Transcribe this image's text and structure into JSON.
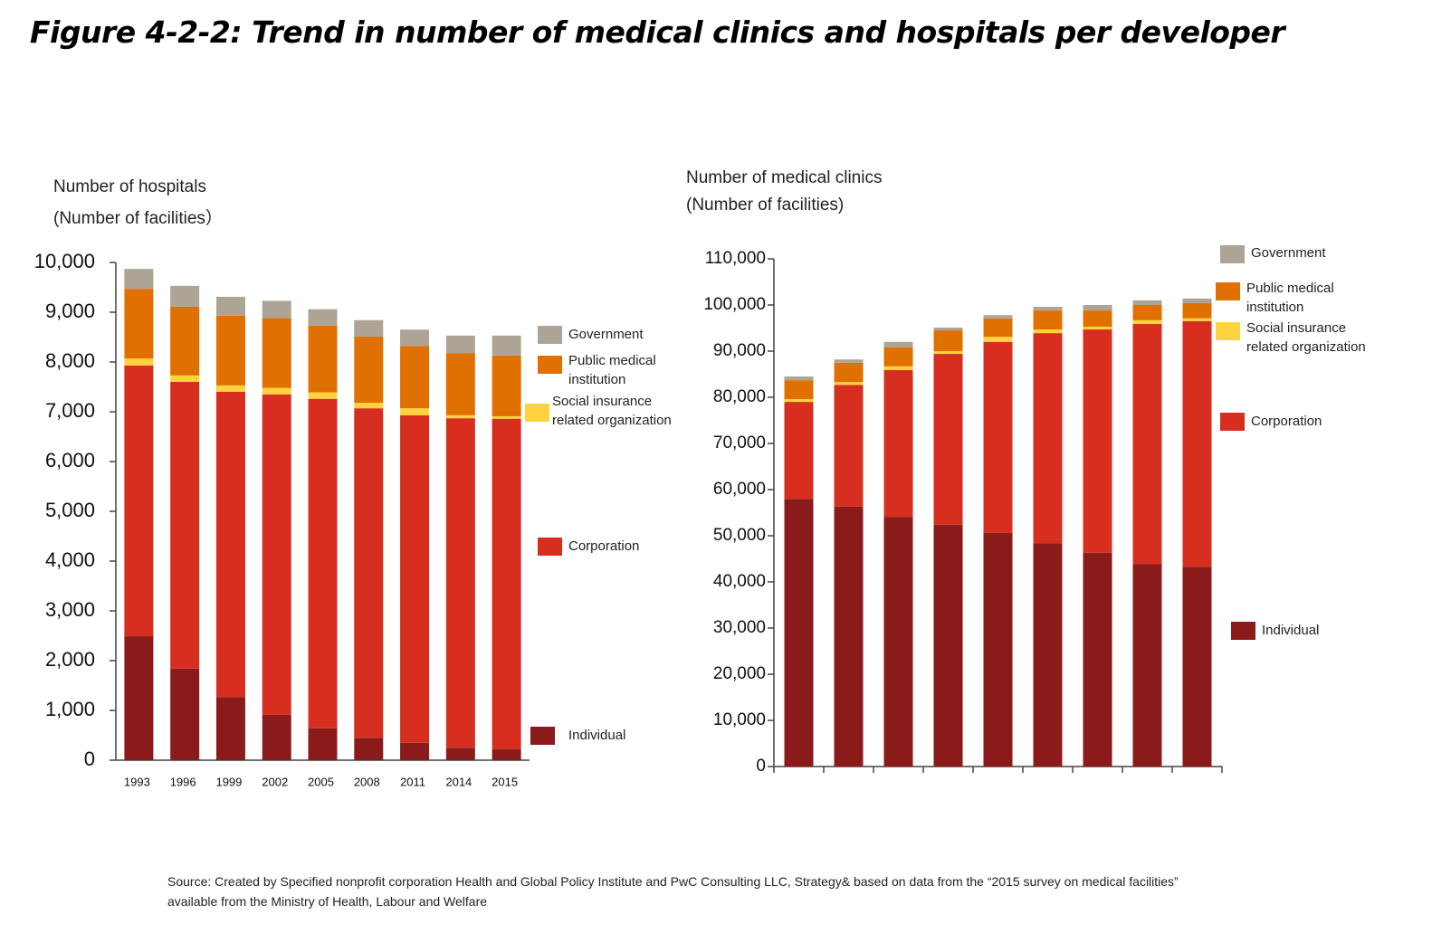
{
  "title": "Figure 4-2-2: Trend in number of medical clinics and hospitals per developer",
  "source": [
    "Source: Created by Specified nonprofit corporation Health and Global Policy Institute and PwC Consulting LLC, Strategy& based on data from the “2015 survey on medical facilities”",
    "available from the Ministry of Health, Labour and Welfare"
  ],
  "chart_data": [
    {
      "type": "stacked_bar",
      "y_label": [
        "Number of hospitals",
        "(Number of facilities）"
      ],
      "categories": [
        "1993",
        "1996",
        "1999",
        "2002",
        "2005",
        "2008",
        "2011",
        "2014",
        "2015"
      ],
      "series": [
        {
          "name": "Individual",
          "color": "#8b1a1a",
          "values": [
            2490,
            1840,
            1270,
            910,
            640,
            450,
            350,
            250,
            220
          ]
        },
        {
          "name": "Corporation",
          "color": "#d62e1f",
          "values": [
            5440,
            5760,
            6130,
            6440,
            6620,
            6620,
            6580,
            6620,
            6640
          ]
        },
        {
          "name": "Social insurance related organization",
          "color": "#ffd23f",
          "values": [
            140,
            130,
            130,
            130,
            130,
            110,
            140,
            60,
            50
          ]
        },
        {
          "name": "Public medical institution",
          "color": "#e07000",
          "values": [
            1400,
            1380,
            1400,
            1400,
            1340,
            1330,
            1250,
            1250,
            1220
          ]
        },
        {
          "name": "Government",
          "color": "#ada496",
          "values": [
            400,
            420,
            380,
            350,
            330,
            330,
            330,
            350,
            400
          ]
        }
      ],
      "ylim": [
        0,
        10000
      ],
      "yticks": [
        0,
        {
          "value": 1000,
          "label": "1,000"
        },
        {
          "value": 2000,
          "label": "2,000"
        },
        {
          "value": 3000,
          "label": "3,000"
        },
        {
          "value": 4000,
          "label": "4,000"
        },
        {
          "value": 5000,
          "label": "5,000"
        },
        {
          "value": 6000,
          "label": "6,000"
        },
        {
          "value": 7000,
          "label": "7,000"
        },
        {
          "value": 8000,
          "label": "8,000"
        },
        {
          "value": 9000,
          "label": "9,000"
        },
        {
          "value": 10000,
          "label": "10,000"
        }
      ]
    },
    {
      "type": "stacked_bar",
      "y_label": [
        "Number of medical clinics",
        "(Number of facilities)"
      ],
      "categories": [
        null,
        null,
        null,
        null,
        null,
        null,
        null,
        null,
        null
      ],
      "series": [
        {
          "name": "Individual",
          "color": "#8b1a1a",
          "values": [
            58000,
            56300,
            54100,
            52400,
            50600,
            48400,
            46300,
            43900,
            43300
          ]
        },
        {
          "name": "Corporation",
          "color": "#d62e1f",
          "values": [
            21000,
            26400,
            31800,
            37000,
            41400,
            45500,
            48400,
            52000,
            53200
          ]
        },
        {
          "name": "Social insurance related organization",
          "color": "#ffd23f",
          "values": [
            600,
            600,
            800,
            600,
            1100,
            800,
            600,
            800,
            600
          ]
        },
        {
          "name": "Public medical institution",
          "color": "#e07000",
          "values": [
            4100,
            4200,
            4100,
            4500,
            4000,
            4100,
            3500,
            3300,
            3300
          ]
        },
        {
          "name": "Government",
          "color": "#ada496",
          "values": [
            800,
            700,
            1200,
            600,
            700,
            800,
            1200,
            1000,
            1000
          ]
        }
      ],
      "ylim": [
        0,
        110000
      ],
      "yticks": [
        0,
        {
          "value": 10000,
          "label": "10,000"
        },
        {
          "value": 20000,
          "label": "20,000"
        },
        {
          "value": 30000,
          "label": "30,000"
        },
        {
          "value": 40000,
          "label": "40,000"
        },
        {
          "value": 50000,
          "label": "50,000"
        },
        {
          "value": 60000,
          "label": "60,000"
        },
        {
          "value": 70000,
          "label": "70,000"
        },
        {
          "value": 80000,
          "label": "80,000"
        },
        {
          "value": 90000,
          "label": "90,000"
        },
        {
          "value": 100000,
          "label": "100,000"
        },
        {
          "value": 110000,
          "label": "110,000"
        }
      ]
    }
  ]
}
